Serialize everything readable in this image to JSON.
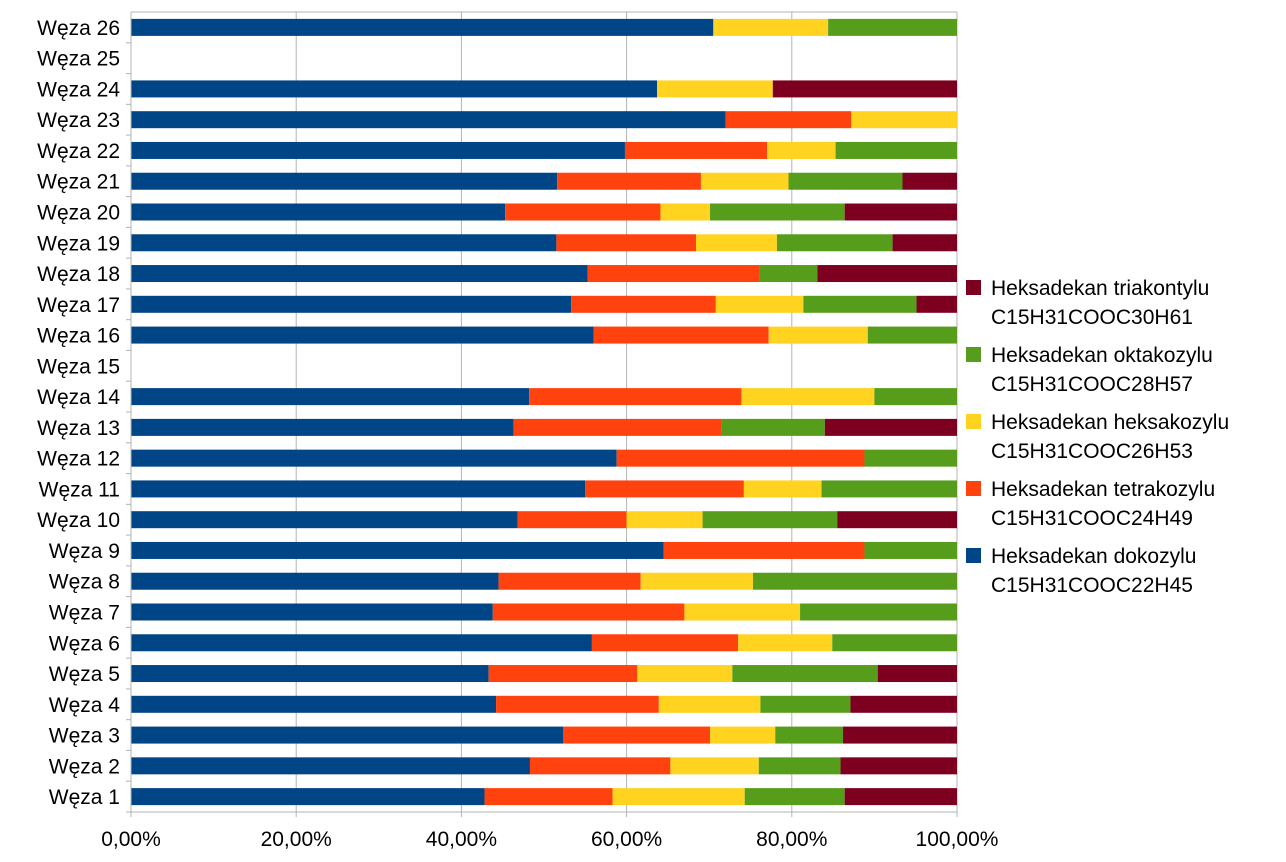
{
  "chart_data": {
    "type": "bar",
    "orientation": "horizontal",
    "stacked": "percent",
    "title": "",
    "xlabel": "",
    "ylabel": "",
    "xlim": [
      0,
      100
    ],
    "x_ticks": [
      "0,00%",
      "20,00%",
      "40,00%",
      "60,00%",
      "80,00%",
      "100,00%"
    ],
    "grid": "vertical",
    "legend_position": "right",
    "categories": [
      "Węza 1",
      "Węza 2",
      "Węza 3",
      "Węza 4",
      "Węza 5",
      "Węza 6",
      "Węza 7",
      "Węza 8",
      "Węza 9",
      "Węza 10",
      "Węza 11",
      "Węza 12",
      "Węza 13",
      "Węza 14",
      "Węza 15",
      "Węza 16",
      "Węza 17",
      "Węza 18",
      "Węza 19",
      "Węza 20",
      "Węza 21",
      "Węza 22",
      "Węza 23",
      "Węza 24",
      "Węza 25",
      "Węza 26"
    ],
    "series": [
      {
        "name": "Heksadekan dokozylu C15H31COOC22H45",
        "legend_lines": [
          "Heksadekan dokozylu",
          "C15H31COOC22H45"
        ],
        "color": "#004586",
        "values": [
          42.8,
          48.3,
          52.3,
          44.2,
          43.3,
          55.8,
          43.8,
          44.5,
          64.5,
          46.8,
          55.0,
          58.8,
          46.3,
          48.2,
          0,
          56.0,
          53.3,
          55.3,
          51.5,
          45.3,
          51.6,
          59.8,
          72.0,
          63.7,
          0,
          70.5
        ]
      },
      {
        "name": "Heksadekan tetrakozylu C15H31COOC24H49",
        "legend_lines": [
          "Heksadekan tetrakozylu",
          "C15H31COOC24H49"
        ],
        "color": "#ff420e",
        "values": [
          15.5,
          17.0,
          17.8,
          19.7,
          18.0,
          17.7,
          23.2,
          17.2,
          24.3,
          13.2,
          19.2,
          30.0,
          25.2,
          25.7,
          0,
          21.2,
          17.5,
          20.8,
          16.9,
          18.8,
          17.4,
          17.2,
          15.2,
          0,
          0,
          0
        ]
      },
      {
        "name": "Heksadekan heksakozylu C15H31COOC26H53",
        "legend_lines": [
          "Heksadekan heksakozylu",
          "C15H31COOC26H53"
        ],
        "color": "#ffd320",
        "values": [
          16.0,
          10.7,
          7.9,
          12.3,
          11.5,
          11.4,
          14.0,
          13.6,
          0,
          9.2,
          9.4,
          0,
          0,
          16.1,
          0,
          12.0,
          10.6,
          0,
          9.8,
          6.0,
          10.6,
          8.3,
          12.8,
          14.0,
          0,
          13.9
        ]
      },
      {
        "name": "Heksadekan oktakozylu C15H31COOC28H57",
        "legend_lines": [
          "Heksadekan oktakozylu",
          "C15H31COOC28H57"
        ],
        "color": "#579d1c",
        "values": [
          12.1,
          9.9,
          8.2,
          10.9,
          17.6,
          15.1,
          19.0,
          24.7,
          11.2,
          16.3,
          16.4,
          11.2,
          12.5,
          10.0,
          0,
          10.8,
          13.7,
          7.0,
          14.0,
          16.3,
          13.8,
          14.7,
          0,
          0,
          0,
          15.6
        ]
      },
      {
        "name": "Heksadekan triakontylu C15H31COOC30H61",
        "legend_lines": [
          "Heksadekan triakontylu",
          "C15H31COOC30H61"
        ],
        "color": "#7e0021",
        "values": [
          13.6,
          14.1,
          13.8,
          12.9,
          9.6,
          0,
          0,
          0,
          0,
          14.5,
          0,
          0,
          16.0,
          0,
          0,
          0,
          4.9,
          16.9,
          7.8,
          13.6,
          6.6,
          0,
          0,
          22.3,
          0,
          0
        ]
      }
    ]
  }
}
